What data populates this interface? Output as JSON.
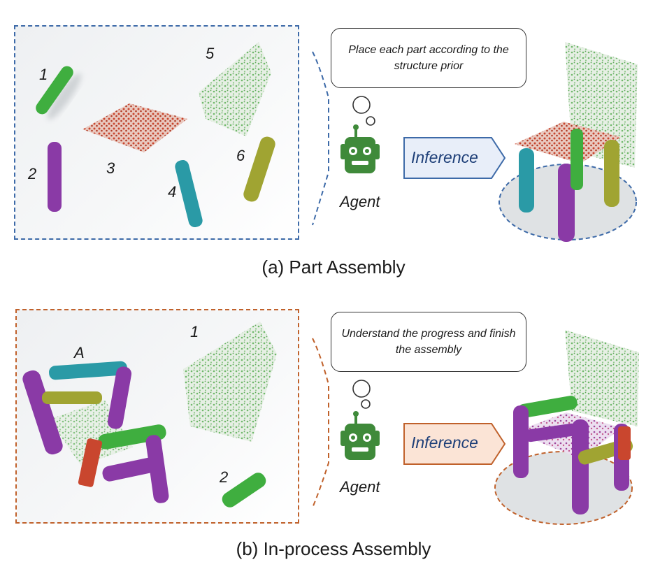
{
  "panel_a": {
    "part_labels": [
      "1",
      "2",
      "3",
      "4",
      "5",
      "6"
    ],
    "bubble_text": "Place each part according to the structure prior",
    "agent_label": "Agent",
    "arrow_label": "Inference",
    "caption": "(a) Part Assembly",
    "frame_color": "#3d6aa8",
    "arrow_fill": "#e8eef9"
  },
  "panel_b": {
    "part_labels": [
      "A",
      "1",
      "2"
    ],
    "bubble_text": "Understand the progress and finish the assembly",
    "agent_label": "Agent",
    "arrow_label": "Inference",
    "caption": "(b) In-process Assembly",
    "frame_color": "#c0612b",
    "arrow_fill": "#fbe4d6"
  },
  "colors": {
    "green": "#3fae3f",
    "purple": "#8a3aa6",
    "red": "#c9462e",
    "teal": "#2a9aa6",
    "olive": "#a0a432",
    "robot": "#3f8a3a"
  }
}
